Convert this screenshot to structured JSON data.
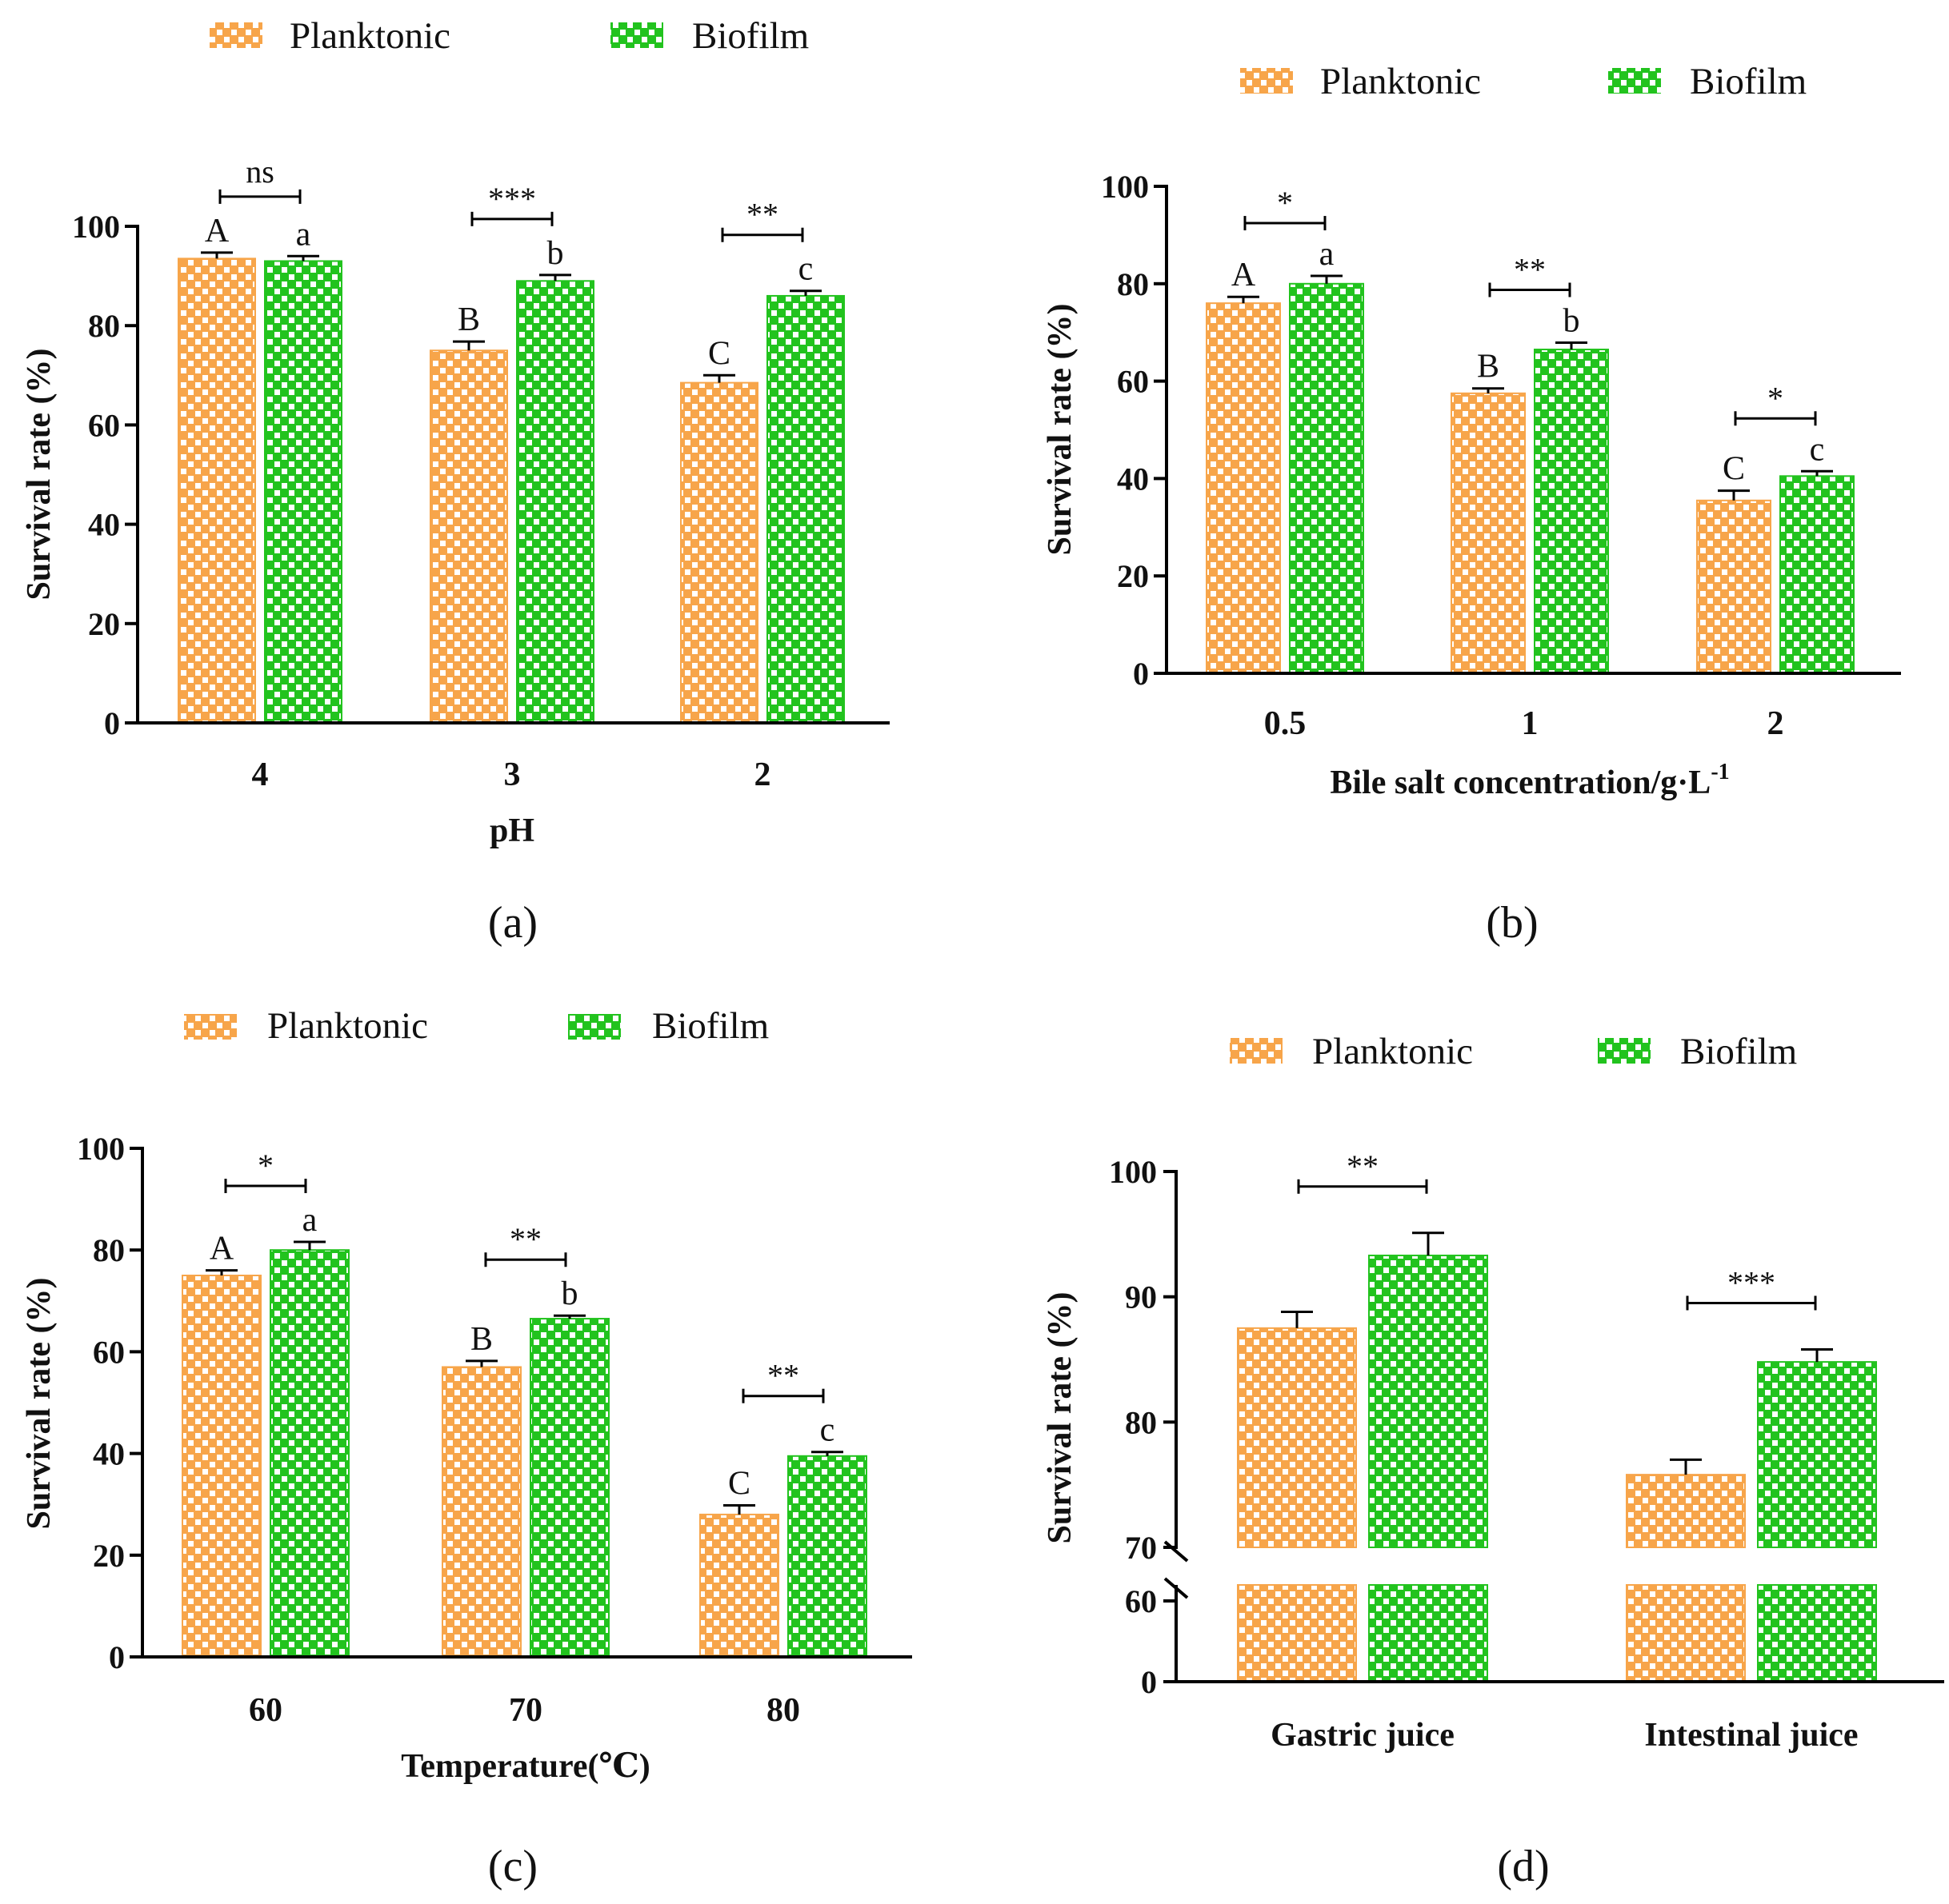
{
  "colors": {
    "planktonic": "#F7A54A",
    "biofilm": "#22C31E",
    "axis": "#000000"
  },
  "y_axis_label": "Survival rate (%)",
  "legend": {
    "planktonic": "Planktonic",
    "biofilm": "Biofilm"
  },
  "chart_data": [
    {
      "type": "bar",
      "panel_label": "(a)",
      "xlabel": "pH",
      "ylabel": "Survival rate (%)",
      "ylim": [
        0,
        100
      ],
      "yticks": [
        "0",
        "20",
        "40",
        "60",
        "80",
        "100"
      ],
      "categories": [
        "4",
        "3",
        "2"
      ],
      "series": [
        {
          "name": "Planktonic",
          "values": [
            93.5,
            75,
            68.5
          ],
          "errors": [
            1.2,
            1.8,
            1.5
          ],
          "letters": [
            "A",
            "B",
            "C"
          ]
        },
        {
          "name": "Biofilm",
          "values": [
            93,
            89,
            86
          ],
          "errors": [
            1.0,
            1.2,
            1.0
          ],
          "letters": [
            "a",
            "b",
            "c"
          ]
        }
      ],
      "significance": [
        "ns",
        "***",
        "**"
      ]
    },
    {
      "type": "bar",
      "panel_label": "(b)",
      "xlabel": "Bile salt concentration/g·L",
      "xlabel_sup": "-1",
      "ylabel": "Survival rate (%)",
      "ylim": [
        0,
        100
      ],
      "yticks": [
        "0",
        "20",
        "40",
        "60",
        "80",
        "100"
      ],
      "categories": [
        "0.5",
        "1",
        "2"
      ],
      "series": [
        {
          "name": "Planktonic",
          "values": [
            76,
            57.5,
            35.5
          ],
          "errors": [
            1.3,
            1.0,
            2.0
          ],
          "letters": [
            "A",
            "B",
            "C"
          ]
        },
        {
          "name": "Biofilm",
          "values": [
            80,
            66.5,
            40.5
          ],
          "errors": [
            1.6,
            1.4,
            1.0
          ],
          "letters": [
            "a",
            "b",
            "c"
          ]
        }
      ],
      "significance": [
        "*",
        "**",
        "*"
      ]
    },
    {
      "type": "bar",
      "panel_label": "(c)",
      "xlabel": "Temperature(℃)",
      "ylabel": "Survival rate (%)",
      "ylim": [
        0,
        100
      ],
      "yticks": [
        "0",
        "20",
        "40",
        "60",
        "80",
        "100"
      ],
      "categories": [
        "60",
        "70",
        "80"
      ],
      "series": [
        {
          "name": "Planktonic",
          "values": [
            75,
            57,
            28
          ],
          "errors": [
            1.0,
            1.2,
            1.8
          ],
          "letters": [
            "A",
            "B",
            "C"
          ]
        },
        {
          "name": "Biofilm",
          "values": [
            80,
            66.5,
            39.5
          ],
          "errors": [
            1.6,
            0.6,
            0.8
          ],
          "letters": [
            "a",
            "b",
            "c"
          ]
        }
      ],
      "significance": [
        "*",
        "**",
        "**"
      ]
    },
    {
      "type": "bar",
      "panel_label": "(d)",
      "xlabel": "",
      "ylabel": "Survival rate (%)",
      "y_axis_break": [
        60,
        70
      ],
      "ylim": [
        0,
        100
      ],
      "yticks": [
        "0",
        "60",
        "70",
        "80",
        "90",
        "100"
      ],
      "categories": [
        "Gastric juice",
        "Intestinal juice"
      ],
      "series": [
        {
          "name": "Planktonic",
          "values": [
            87.5,
            75.8
          ],
          "errors": [
            1.3,
            1.2
          ]
        },
        {
          "name": "Biofilm",
          "values": [
            93.3,
            84.8
          ],
          "errors": [
            1.8,
            1.0
          ]
        }
      ],
      "significance": [
        "**",
        "***"
      ]
    }
  ]
}
